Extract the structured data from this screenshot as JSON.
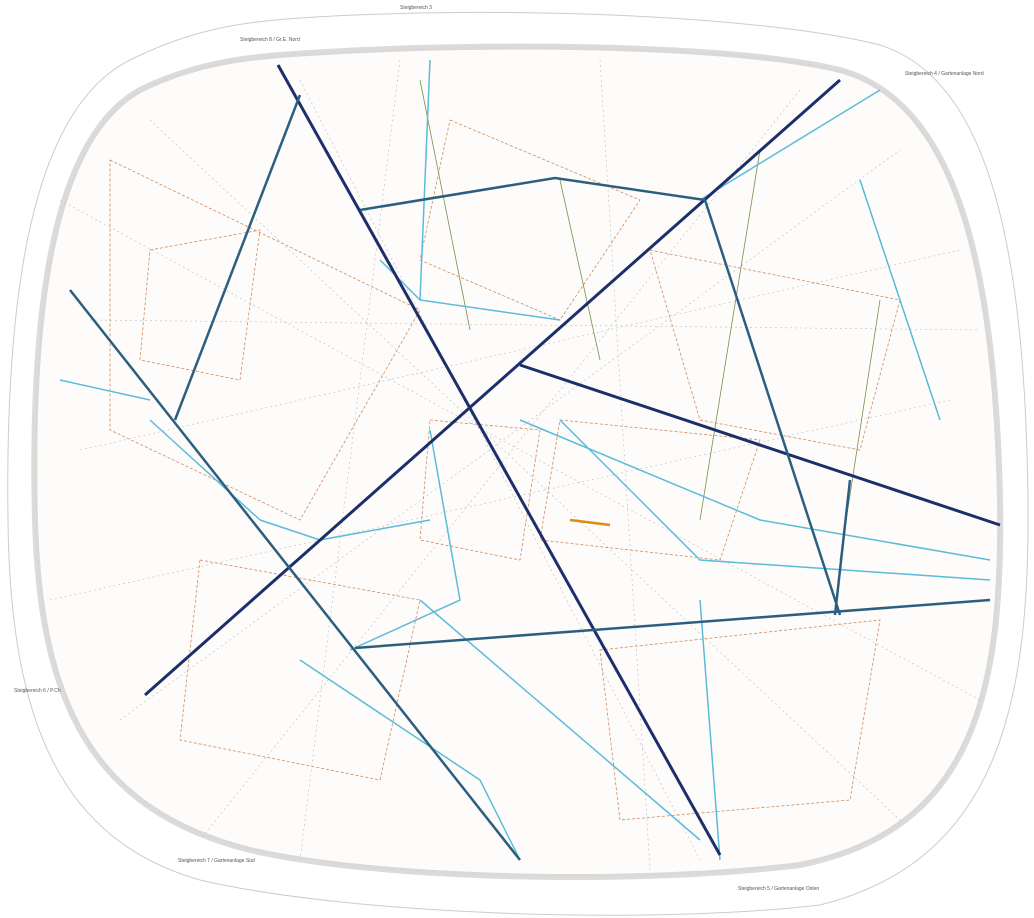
{
  "labels": [
    "Steigbereich 3",
    "Steigbereich 8 / Gr.E. Nord",
    "Steigbereich 4 / Gartenanlage Nord",
    "Steigbereich 6 / P.Ch",
    "Steigbereich 7 / Gartenanlage Süd",
    "Steigbereich 5 / Gartenanlage Osten"
  ]
}
